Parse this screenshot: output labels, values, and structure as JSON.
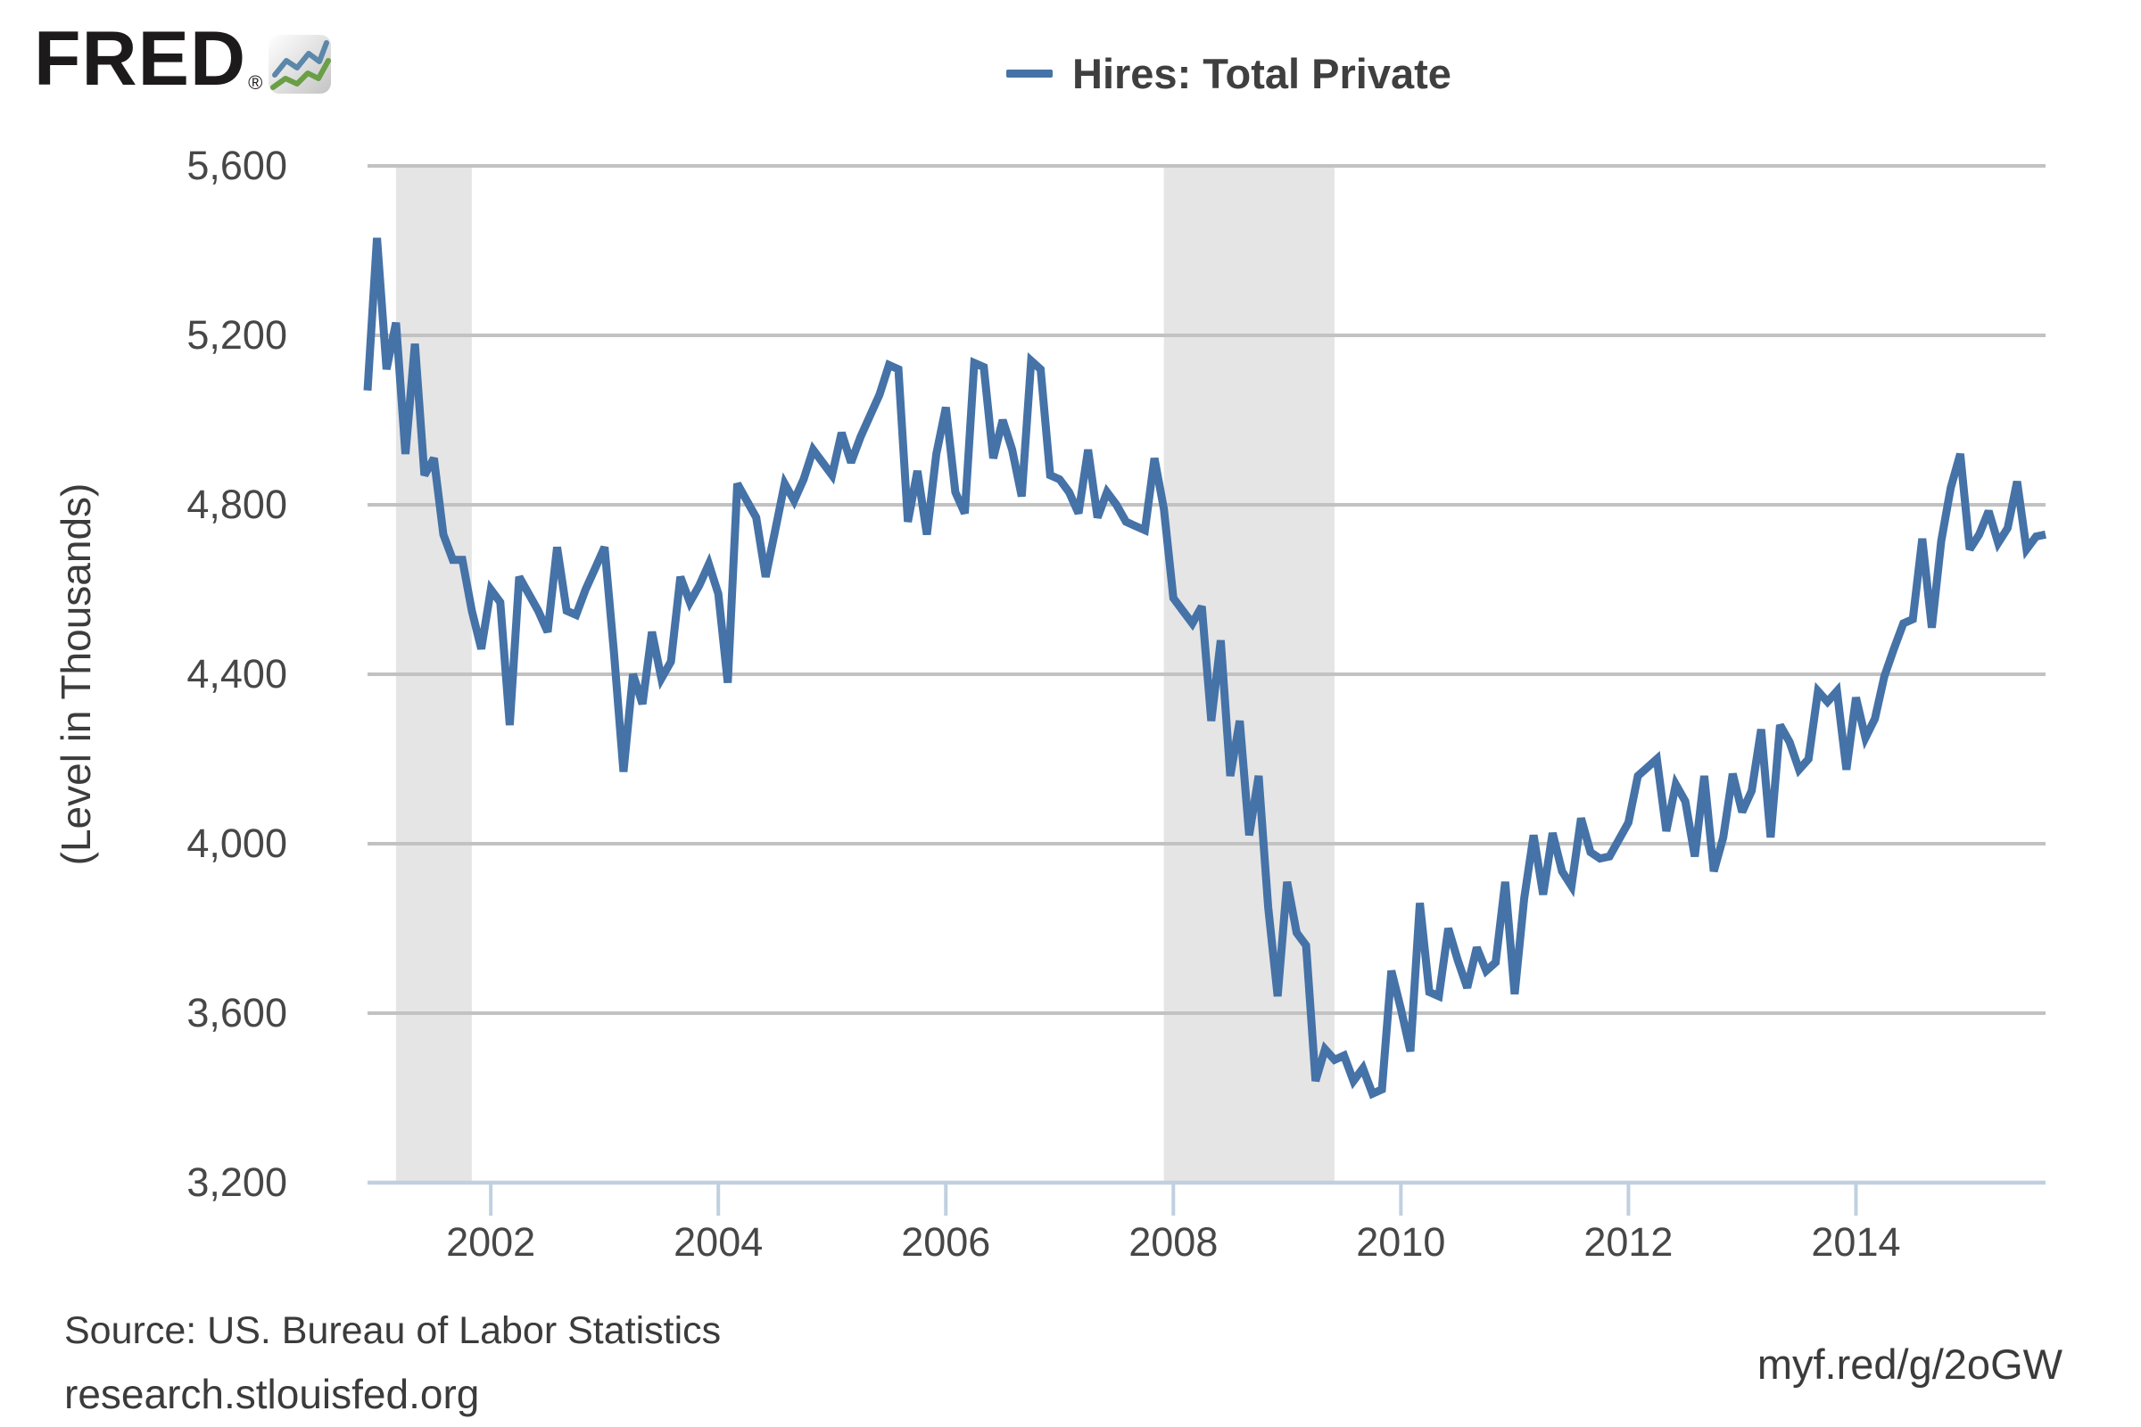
{
  "brand": {
    "logo_text": "FRED",
    "registered_mark": "®"
  },
  "legend": {
    "label": "Hires: Total Private",
    "swatch_color": "#4572a7"
  },
  "y_axis": {
    "title": "(Level in Thousands)",
    "tick_labels": [
      "5,600",
      "5,200",
      "4,800",
      "4,400",
      "4,000",
      "3,600",
      "3,200"
    ],
    "tick_values": [
      5600,
      5200,
      4800,
      4400,
      4000,
      3600,
      3200
    ]
  },
  "x_axis": {
    "tick_labels": [
      "2002",
      "2004",
      "2006",
      "2008",
      "2010",
      "2012",
      "2014"
    ],
    "tick_years": [
      2002,
      2004,
      2006,
      2008,
      2010,
      2012,
      2014
    ]
  },
  "footer": {
    "source": "Source: US. Bureau of Labor Statistics",
    "site": "research.stlouisfed.org",
    "short_url": "myf.red/g/2oGW"
  },
  "chart_data": {
    "type": "line",
    "title": "Hires: Total Private",
    "ylabel": "(Level in Thousands)",
    "xlabel": "",
    "ylim": [
      3200,
      5600
    ],
    "grid": "horizontal",
    "legend_position": "top-center",
    "frequency": "monthly",
    "series": [
      {
        "name": "Hires: Total Private",
        "start_date": "2000-12",
        "end_date": "2015-09",
        "values": [
          5070,
          5430,
          5120,
          5230,
          4920,
          5180,
          4870,
          4910,
          4730,
          4670,
          4670,
          4550,
          4460,
          4600,
          4570,
          4280,
          4630,
          4590,
          4550,
          4500,
          4700,
          4550,
          4540,
          4600,
          4650,
          4700,
          4450,
          4170,
          4400,
          4330,
          4500,
          4390,
          4430,
          4630,
          4570,
          4610,
          4660,
          4590,
          4380,
          4850,
          4810,
          4770,
          4630,
          4740,
          4850,
          4810,
          4860,
          4930,
          4900,
          4870,
          4970,
          4900,
          4960,
          5010,
          5060,
          5130,
          5120,
          4760,
          4880,
          4730,
          4920,
          5030,
          4830,
          4780,
          5135,
          5125,
          4910,
          5000,
          4930,
          4820,
          5140,
          5120,
          4870,
          4860,
          4830,
          4780,
          4930,
          4770,
          4830,
          4800,
          4760,
          4750,
          4740,
          4910,
          4790,
          4580,
          4550,
          4520,
          4560,
          4290,
          4480,
          4160,
          4290,
          4020,
          4160,
          3850,
          3640,
          3910,
          3790,
          3760,
          3440,
          3515,
          3490,
          3500,
          3440,
          3470,
          3410,
          3420,
          3700,
          3610,
          3510,
          3860,
          3650,
          3640,
          3800,
          3725,
          3660,
          3755,
          3700,
          3720,
          3910,
          3645,
          3870,
          4020,
          3880,
          4025,
          3935,
          3900,
          4060,
          3980,
          3965,
          3970,
          4010,
          4050,
          4160,
          4180,
          4200,
          4030,
          4140,
          4100,
          3970,
          4160,
          3935,
          4015,
          4165,
          4075,
          4125,
          4270,
          4015,
          4280,
          4240,
          4175,
          4200,
          4360,
          4335,
          4360,
          4175,
          4345,
          4250,
          4295,
          4395,
          4460,
          4520,
          4530,
          4720,
          4510,
          4715,
          4840,
          4920,
          4695,
          4730,
          4785,
          4710,
          4745,
          4855,
          4695,
          4725,
          4730
        ]
      }
    ],
    "recession_bands": [
      {
        "start": "2001-03",
        "end": "2001-11"
      },
      {
        "start": "2007-12",
        "end": "2009-06"
      }
    ],
    "colors": {
      "line": "#4572a7",
      "grid": "#c2c2c2",
      "axis": "#c0d0e0",
      "recession": "#e5e5e5",
      "text": "#424242"
    }
  }
}
